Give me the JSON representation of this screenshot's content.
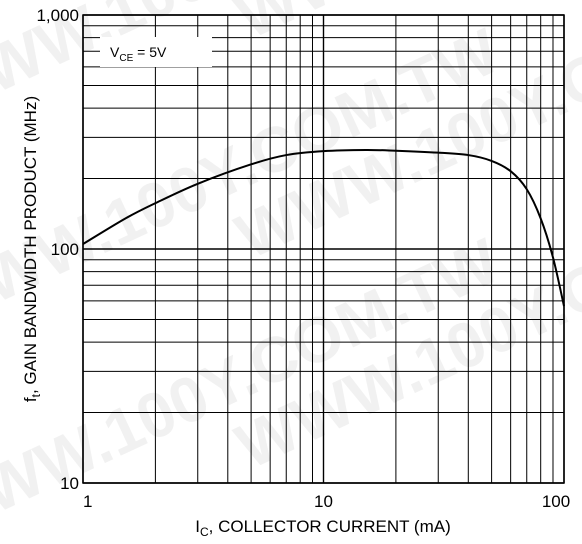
{
  "watermark": {
    "text": "WWW.100Y.COM.TW"
  },
  "chart_data": {
    "type": "line",
    "title": "",
    "xlabel": {
      "main": "I",
      "sub": "C",
      "rest": ", COLLECTOR CURRENT (mA)"
    },
    "ylabel": {
      "main": "f",
      "sub": "t",
      "rest": ", GAIN BANDWIDTH PRODUCT (MHz)"
    },
    "x_scale": "log",
    "y_scale": "log",
    "xlim": [
      1,
      100
    ],
    "ylim": [
      10,
      1000
    ],
    "x_ticks": [
      {
        "value": 1,
        "label": "1"
      },
      {
        "value": 10,
        "label": "10"
      },
      {
        "value": 100,
        "label": "100"
      }
    ],
    "y_ticks": [
      {
        "value": 10,
        "label": "10"
      },
      {
        "value": 100,
        "label": "100"
      },
      {
        "value": 1000,
        "label": "1,000"
      }
    ],
    "grid": true,
    "annotation": {
      "main": "V",
      "sub": "CE",
      "rest": " = 5V"
    },
    "series": [
      {
        "x": [
          1,
          1.5,
          2,
          3,
          5,
          7,
          10,
          15,
          20,
          30,
          40,
          50,
          60,
          70,
          80,
          90,
          100
        ],
        "y": [
          105,
          135,
          157,
          190,
          230,
          252,
          262,
          265,
          263,
          258,
          252,
          238,
          215,
          180,
          135,
          92,
          57
        ]
      }
    ]
  }
}
